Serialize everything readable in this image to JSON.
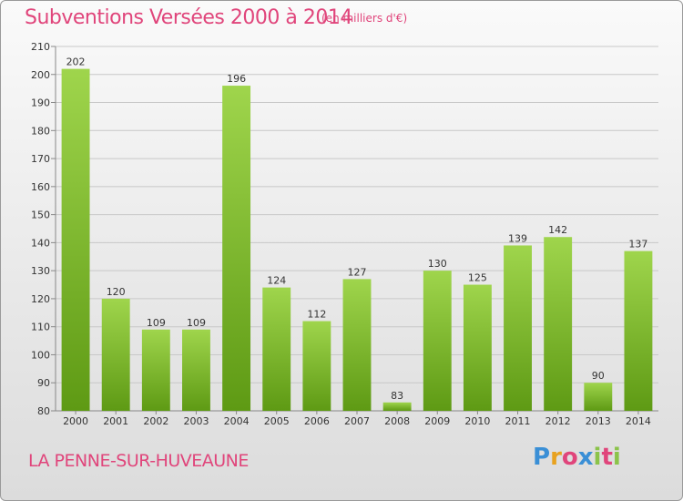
{
  "title": "Subventions Versées 2000 à 2014",
  "subtitle": "(en milliers d'€)",
  "commune": "LA PENNE-SUR-HUVEAUNE",
  "logo": {
    "letters": [
      "P",
      "r",
      "o",
      "x",
      "i",
      "t",
      "i"
    ],
    "colors": [
      "#3a8fd6",
      "#e8a21f",
      "#e0457b",
      "#3a8fd6",
      "#8bc34a",
      "#e0457b",
      "#8bc34a"
    ]
  },
  "colors": {
    "bar_top": "#9fd54c",
    "bar_bottom": "#5e9a14",
    "accent": "#e0457b"
  },
  "chart_data": {
    "type": "bar",
    "title": "Subventions Versées 2000 à 2014",
    "subtitle": "(en milliers d'€)",
    "categories": [
      "2000",
      "2001",
      "2002",
      "2003",
      "2004",
      "2005",
      "2006",
      "2007",
      "2008",
      "2009",
      "2010",
      "2011",
      "2012",
      "2013",
      "2014"
    ],
    "values": [
      202,
      120,
      109,
      109,
      196,
      124,
      112,
      127,
      83,
      130,
      125,
      139,
      142,
      90,
      137
    ],
    "ylim": [
      80,
      210
    ],
    "yticks": [
      80,
      90,
      100,
      110,
      120,
      130,
      140,
      150,
      160,
      170,
      180,
      190,
      200,
      210
    ],
    "grid": true
  }
}
